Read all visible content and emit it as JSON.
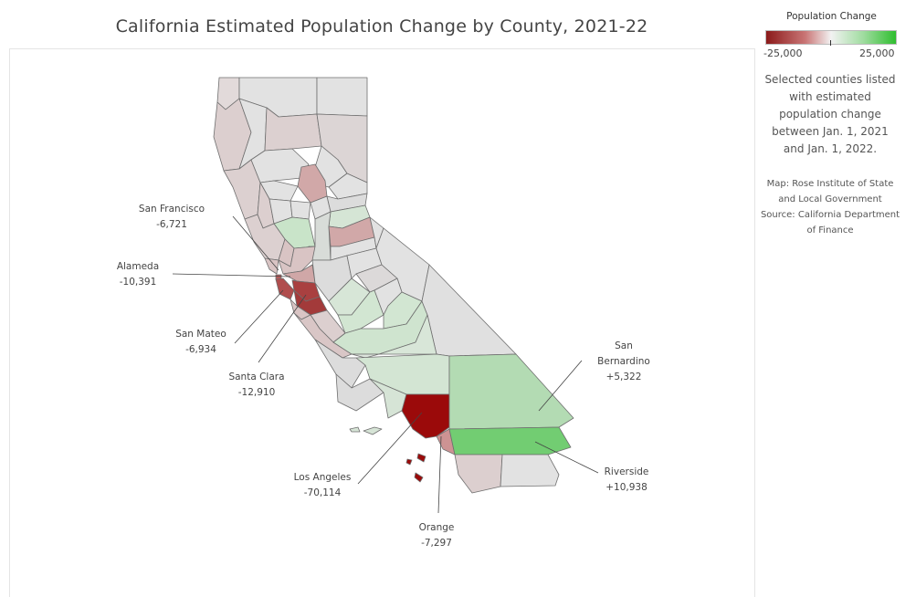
{
  "title": "California Estimated Population Change by County, 2021-22",
  "legend": {
    "title": "Population Change",
    "min_label": "-25,000",
    "max_label": "25,000",
    "min_color": "#8b1a1a",
    "mid_color": "#f2f2f2",
    "max_color": "#2fbe2f"
  },
  "note": "Selected counties listed with estimated population change between Jan. 1, 2021 and Jan. 1, 2022.",
  "source": "Map: Rose Institute of State and Local Government Source: California Department of Finance",
  "callouts": {
    "san_francisco": {
      "name": "San Francisco",
      "value": "-6,721"
    },
    "alameda": {
      "name": "Alameda",
      "value": "-10,391"
    },
    "san_mateo": {
      "name": "San Mateo",
      "value": "-6,934"
    },
    "santa_clara": {
      "name": "Santa Clara",
      "value": "-12,910"
    },
    "los_angeles": {
      "name": "Los Angeles",
      "value": "-70,114"
    },
    "orange": {
      "name": "Orange",
      "value": "-7,297"
    },
    "san_bernardino": {
      "name": "San Bernardino",
      "value": "+5,322"
    },
    "riverside": {
      "name": "Riverside",
      "value": "+10,938"
    }
  }
}
